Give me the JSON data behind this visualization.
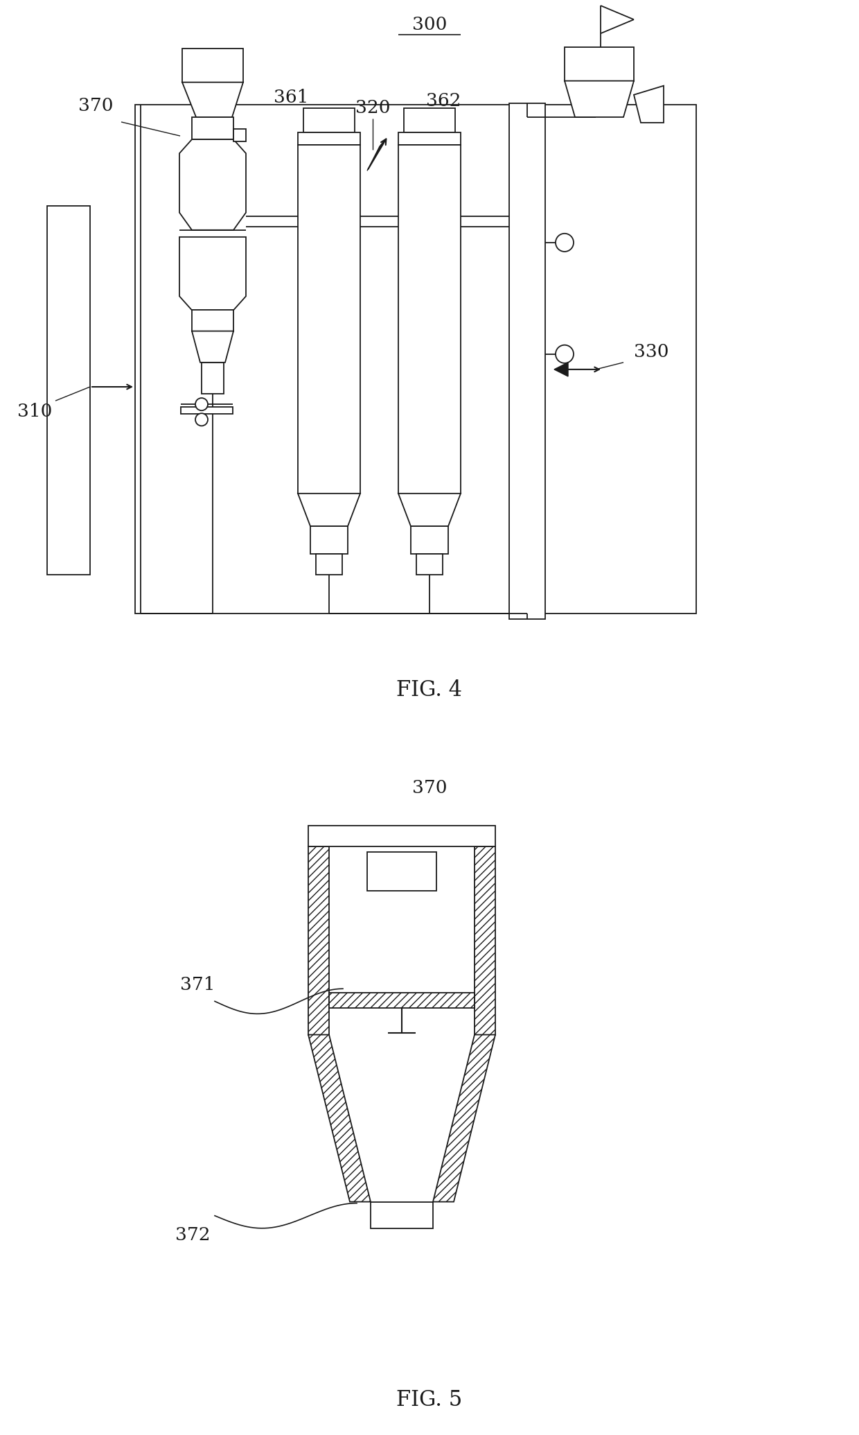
{
  "bg_color": "#ffffff",
  "line_color": "#1a1a1a",
  "fig4": {
    "caption": "FIG. 4",
    "ref_label": "300"
  },
  "fig5": {
    "caption": "FIG. 5",
    "ref_label": "370"
  }
}
